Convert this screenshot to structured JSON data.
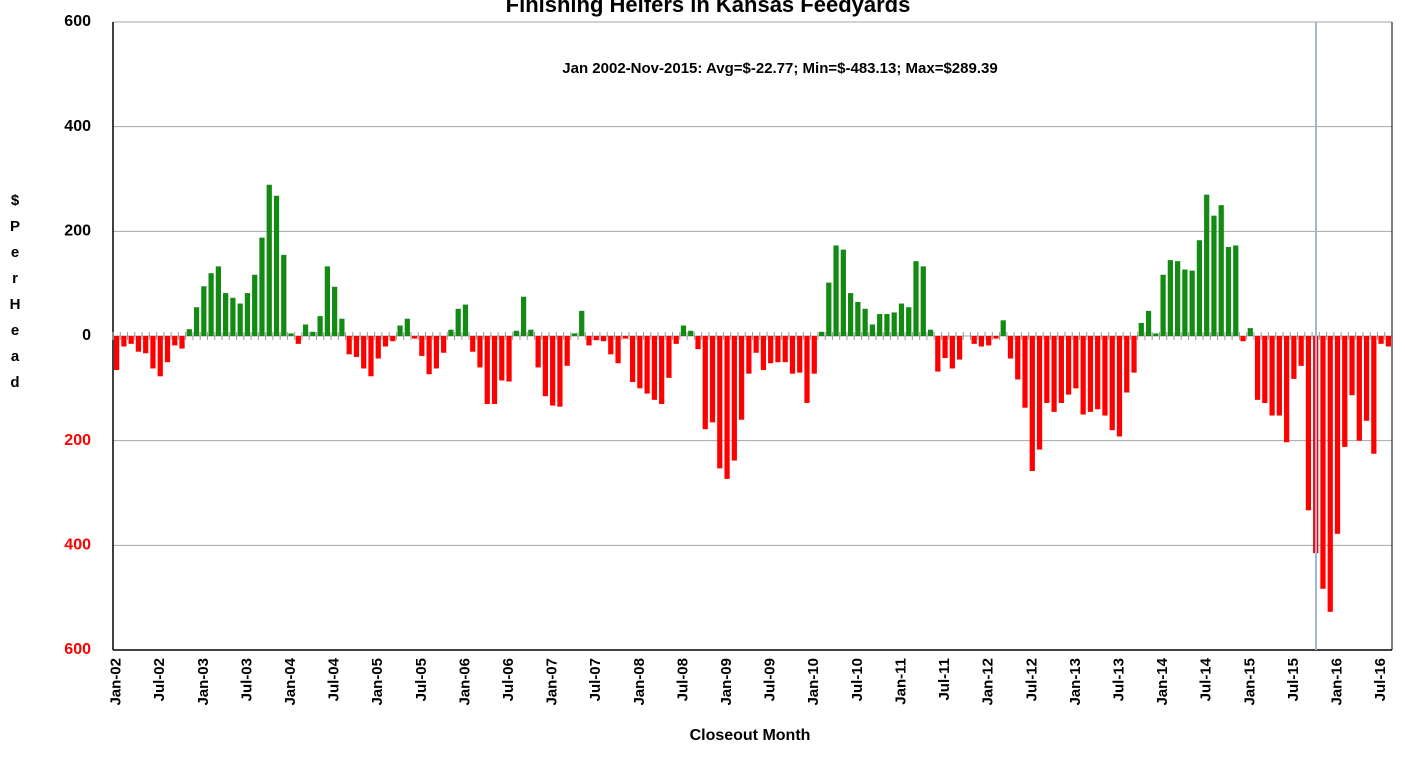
{
  "chart_data": {
    "type": "bar",
    "title": "Finishing Heifers in Kansas Feedyards",
    "annotation": "Jan 2002-Nov-2015:  Avg=$-22.77; Min=$-483.13; Max=$289.39",
    "x_label": "Closeout Month",
    "y_label": "$ Per Head",
    "categories": [
      "Jan-02",
      null,
      null,
      null,
      null,
      null,
      "Jul-02",
      null,
      null,
      null,
      null,
      null,
      "Jan-03",
      null,
      null,
      null,
      null,
      null,
      "Jul-03",
      null,
      null,
      null,
      null,
      null,
      "Jan-04",
      null,
      null,
      null,
      null,
      null,
      "Jul-04",
      null,
      null,
      null,
      null,
      null,
      "Jan-05",
      null,
      null,
      null,
      null,
      null,
      "Jul-05",
      null,
      null,
      null,
      null,
      null,
      "Jan-06",
      null,
      null,
      null,
      null,
      null,
      "Jul-06",
      null,
      null,
      null,
      null,
      null,
      "Jan-07",
      null,
      null,
      null,
      null,
      null,
      "Jul-07",
      null,
      null,
      null,
      null,
      null,
      "Jan-08",
      null,
      null,
      null,
      null,
      null,
      "Jul-08",
      null,
      null,
      null,
      null,
      null,
      "Jan-09",
      null,
      null,
      null,
      null,
      null,
      "Jul-09",
      null,
      null,
      null,
      null,
      null,
      "Jan-10",
      null,
      null,
      null,
      null,
      null,
      "Jul-10",
      null,
      null,
      null,
      null,
      null,
      "Jan-11",
      null,
      null,
      null,
      null,
      null,
      "Jul-11",
      null,
      null,
      null,
      null,
      null,
      "Jan-12",
      null,
      null,
      null,
      null,
      null,
      "Jul-12",
      null,
      null,
      null,
      null,
      null,
      "Jan-13",
      null,
      null,
      null,
      null,
      null,
      "Jul-13",
      null,
      null,
      null,
      null,
      null,
      "Jan-14",
      null,
      null,
      null,
      null,
      null,
      "Jul-14",
      null,
      null,
      null,
      null,
      null,
      "Jan-15",
      null,
      null,
      null,
      null,
      null,
      "Jul-15",
      null,
      null,
      null,
      null,
      null,
      "Jan-16",
      null,
      null,
      null,
      null,
      null,
      "Jul-16",
      null
    ],
    "values": [
      -65,
      -20,
      -15,
      -30,
      -33,
      -62,
      -77,
      -50,
      -18,
      -24,
      13,
      55,
      95,
      120,
      133,
      82,
      73,
      62,
      82,
      117,
      188,
      289,
      268,
      155,
      5,
      -15,
      22,
      8,
      38,
      133,
      94,
      33,
      -35,
      -40,
      -62,
      -77,
      -43,
      -20,
      -10,
      20,
      33,
      -5,
      -38,
      -73,
      -62,
      -32,
      12,
      52,
      60,
      -30,
      -60,
      -130,
      -130,
      -85,
      -87,
      10,
      75,
      12,
      -60,
      -115,
      -133,
      -135,
      -57,
      5,
      48,
      -18,
      -8,
      -10,
      -35,
      -52,
      -5,
      -88,
      -100,
      -110,
      -122,
      -130,
      -80,
      -15,
      20,
      10,
      -25,
      -178,
      -165,
      -253,
      -273,
      -238,
      -160,
      -72,
      -32,
      -65,
      -52,
      -50,
      -50,
      -72,
      -70,
      -128,
      -72,
      8,
      102,
      173,
      165,
      82,
      65,
      52,
      22,
      42,
      42,
      45,
      62,
      55,
      143,
      133,
      12,
      -68,
      -42,
      -62,
      -45,
      0,
      -15,
      -20,
      -18,
      -5,
      30,
      -43,
      -83,
      -137,
      -258,
      -217,
      -128,
      -145,
      -128,
      -112,
      -100,
      -150,
      -145,
      -140,
      -152,
      -180,
      -192,
      -108,
      -70,
      25,
      48,
      5,
      117,
      145,
      143,
      127,
      125,
      183,
      270,
      230,
      250,
      170,
      173,
      -10,
      15,
      -122,
      -128,
      -152,
      -152,
      -203,
      -82,
      -57,
      -333,
      -415,
      -483,
      -527,
      -378,
      -212,
      -113,
      -200,
      -162,
      -225,
      -15,
      -20
    ],
    "positive_color": "#138a13",
    "negative_color": "#ff0000",
    "ylim": [
      -600,
      600
    ],
    "yticks": [
      {
        "value": -600,
        "label": "600"
      },
      {
        "value": -400,
        "label": "400"
      },
      {
        "value": -200,
        "label": "200"
      },
      0,
      200,
      400,
      600
    ],
    "grid": true
  }
}
